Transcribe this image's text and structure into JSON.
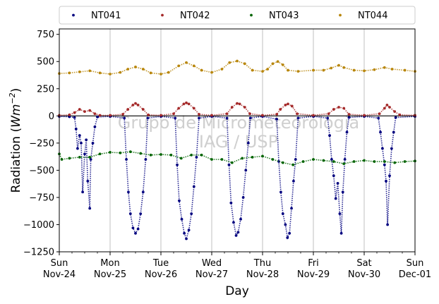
{
  "chart_data": {
    "type": "scatter",
    "title": "",
    "xlabel": "Day",
    "ylabel": "Radiation (Wm⁻²)",
    "ylabel_base": "Radiation (",
    "ylabel_unit": "Wm",
    "ylabel_exp": "−2",
    "ylabel_close": ")",
    "xlim": [
      0,
      7
    ],
    "ylim": [
      -1250,
      800
    ],
    "yticks": [
      -1250,
      -1000,
      -750,
      -500,
      -250,
      0,
      250,
      500,
      750
    ],
    "xticks": [
      {
        "x": 0,
        "day": "Sun",
        "date": "Nov-24"
      },
      {
        "x": 1,
        "day": "Mon",
        "date": "Nov-25"
      },
      {
        "x": 2,
        "day": "Tue",
        "date": "Nov-26"
      },
      {
        "x": 3,
        "day": "Wed",
        "date": "Nov-27"
      },
      {
        "x": 4,
        "day": "Thu",
        "date": "Nov-28"
      },
      {
        "x": 5,
        "day": "Fri",
        "date": "Nov-29"
      },
      {
        "x": 6,
        "day": "Sat",
        "date": "Nov-30"
      },
      {
        "x": 7,
        "day": "Sun",
        "date": "Dec-01"
      }
    ],
    "grid": "vertical",
    "zero_line": true,
    "legend_position": "top",
    "watermark": [
      "Grupo de Micrometeorologia",
      "IAG / USP"
    ],
    "series": [
      {
        "name": "NT041",
        "color": "#00007f",
        "points": [
          [
            0.0,
            -5
          ],
          [
            0.2,
            -8
          ],
          [
            0.3,
            -15
          ],
          [
            0.33,
            -120
          ],
          [
            0.36,
            -300
          ],
          [
            0.4,
            -180
          ],
          [
            0.43,
            -250
          ],
          [
            0.46,
            -700
          ],
          [
            0.5,
            -350
          ],
          [
            0.53,
            -220
          ],
          [
            0.56,
            -600
          ],
          [
            0.6,
            -850
          ],
          [
            0.62,
            -400
          ],
          [
            0.66,
            -250
          ],
          [
            0.7,
            -100
          ],
          [
            0.75,
            -10
          ],
          [
            1.0,
            -5
          ],
          [
            1.28,
            -20
          ],
          [
            1.32,
            -400
          ],
          [
            1.36,
            -700
          ],
          [
            1.4,
            -900
          ],
          [
            1.45,
            -1030
          ],
          [
            1.5,
            -1080
          ],
          [
            1.55,
            -1040
          ],
          [
            1.6,
            -900
          ],
          [
            1.65,
            -700
          ],
          [
            1.7,
            -400
          ],
          [
            1.74,
            -20
          ],
          [
            2.0,
            -5
          ],
          [
            2.28,
            -20
          ],
          [
            2.32,
            -450
          ],
          [
            2.36,
            -780
          ],
          [
            2.41,
            -950
          ],
          [
            2.46,
            -1080
          ],
          [
            2.5,
            -1130
          ],
          [
            2.55,
            -1050
          ],
          [
            2.6,
            -900
          ],
          [
            2.65,
            -650
          ],
          [
            2.7,
            -380
          ],
          [
            2.75,
            -20
          ],
          [
            3.0,
            -5
          ],
          [
            3.3,
            -20
          ],
          [
            3.34,
            -450
          ],
          [
            3.38,
            -800
          ],
          [
            3.43,
            -980
          ],
          [
            3.48,
            -1100
          ],
          [
            3.52,
            -1070
          ],
          [
            3.57,
            -950
          ],
          [
            3.62,
            -750
          ],
          [
            3.67,
            -500
          ],
          [
            3.72,
            -250
          ],
          [
            3.76,
            -20
          ],
          [
            4.0,
            -5
          ],
          [
            4.28,
            -30
          ],
          [
            4.32,
            -420
          ],
          [
            4.36,
            -700
          ],
          [
            4.4,
            -900
          ],
          [
            4.45,
            -1000
          ],
          [
            4.49,
            -1120
          ],
          [
            4.53,
            -1080
          ],
          [
            4.57,
            -850
          ],
          [
            4.61,
            -600
          ],
          [
            4.65,
            -400
          ],
          [
            4.7,
            -20
          ],
          [
            5.0,
            -5
          ],
          [
            5.28,
            -20
          ],
          [
            5.32,
            -180
          ],
          [
            5.36,
            -400
          ],
          [
            5.4,
            -550
          ],
          [
            5.44,
            -760
          ],
          [
            5.48,
            -620
          ],
          [
            5.52,
            -900
          ],
          [
            5.55,
            -1080
          ],
          [
            5.58,
            -700
          ],
          [
            5.62,
            -400
          ],
          [
            5.66,
            -150
          ],
          [
            5.7,
            -15
          ],
          [
            6.0,
            -5
          ],
          [
            6.28,
            -20
          ],
          [
            6.32,
            -150
          ],
          [
            6.36,
            -300
          ],
          [
            6.4,
            -450
          ],
          [
            6.43,
            -600
          ],
          [
            6.46,
            -1000
          ],
          [
            6.5,
            -550
          ],
          [
            6.54,
            -300
          ],
          [
            6.58,
            -150
          ],
          [
            6.62,
            -15
          ],
          [
            7.0,
            -5
          ]
        ]
      },
      {
        "name": "NT042",
        "color": "#a52a2a",
        "points": [
          [
            0.0,
            5
          ],
          [
            0.2,
            10
          ],
          [
            0.3,
            30
          ],
          [
            0.4,
            60
          ],
          [
            0.5,
            40
          ],
          [
            0.6,
            50
          ],
          [
            0.7,
            20
          ],
          [
            0.8,
            5
          ],
          [
            1.0,
            5
          ],
          [
            1.25,
            15
          ],
          [
            1.35,
            60
          ],
          [
            1.45,
            100
          ],
          [
            1.5,
            115
          ],
          [
            1.55,
            100
          ],
          [
            1.65,
            60
          ],
          [
            1.75,
            10
          ],
          [
            2.0,
            5
          ],
          [
            2.25,
            20
          ],
          [
            2.35,
            70
          ],
          [
            2.45,
            110
          ],
          [
            2.5,
            120
          ],
          [
            2.55,
            110
          ],
          [
            2.65,
            70
          ],
          [
            2.75,
            15
          ],
          [
            3.0,
            5
          ],
          [
            3.3,
            20
          ],
          [
            3.4,
            80
          ],
          [
            3.5,
            115
          ],
          [
            3.55,
            110
          ],
          [
            3.65,
            80
          ],
          [
            3.75,
            20
          ],
          [
            4.0,
            5
          ],
          [
            4.28,
            15
          ],
          [
            4.35,
            60
          ],
          [
            4.45,
            100
          ],
          [
            4.5,
            110
          ],
          [
            4.58,
            90
          ],
          [
            4.68,
            20
          ],
          [
            5.0,
            5
          ],
          [
            5.3,
            20
          ],
          [
            5.4,
            60
          ],
          [
            5.5,
            80
          ],
          [
            5.6,
            70
          ],
          [
            5.7,
            15
          ],
          [
            6.0,
            5
          ],
          [
            6.3,
            20
          ],
          [
            6.4,
            70
          ],
          [
            6.45,
            100
          ],
          [
            6.5,
            80
          ],
          [
            6.6,
            40
          ],
          [
            6.7,
            10
          ],
          [
            7.0,
            5
          ]
        ]
      },
      {
        "name": "NT043",
        "color": "#006400",
        "points": [
          [
            0.0,
            -350
          ],
          [
            0.05,
            -400
          ],
          [
            0.2,
            -390
          ],
          [
            0.4,
            -380
          ],
          [
            0.6,
            -380
          ],
          [
            0.8,
            -350
          ],
          [
            1.0,
            -335
          ],
          [
            1.2,
            -340
          ],
          [
            1.4,
            -330
          ],
          [
            1.6,
            -345
          ],
          [
            1.8,
            -360
          ],
          [
            2.0,
            -355
          ],
          [
            2.2,
            -360
          ],
          [
            2.4,
            -390
          ],
          [
            2.6,
            -360
          ],
          [
            2.8,
            -360
          ],
          [
            3.0,
            -400
          ],
          [
            3.2,
            -400
          ],
          [
            3.4,
            -430
          ],
          [
            3.6,
            -390
          ],
          [
            3.8,
            -380
          ],
          [
            4.0,
            -370
          ],
          [
            4.2,
            -400
          ],
          [
            4.4,
            -430
          ],
          [
            4.6,
            -450
          ],
          [
            4.8,
            -420
          ],
          [
            5.0,
            -400
          ],
          [
            5.2,
            -410
          ],
          [
            5.4,
            -420
          ],
          [
            5.6,
            -440
          ],
          [
            5.8,
            -420
          ],
          [
            6.0,
            -410
          ],
          [
            6.2,
            -420
          ],
          [
            6.4,
            -420
          ],
          [
            6.6,
            -430
          ],
          [
            6.8,
            -420
          ],
          [
            7.0,
            -415
          ]
        ]
      },
      {
        "name": "NT044",
        "color": "#b8860b",
        "points": [
          [
            0.0,
            390
          ],
          [
            0.2,
            395
          ],
          [
            0.4,
            405
          ],
          [
            0.6,
            415
          ],
          [
            0.8,
            395
          ],
          [
            1.0,
            385
          ],
          [
            1.2,
            400
          ],
          [
            1.35,
            430
          ],
          [
            1.5,
            450
          ],
          [
            1.65,
            430
          ],
          [
            1.8,
            395
          ],
          [
            2.0,
            385
          ],
          [
            2.15,
            400
          ],
          [
            2.35,
            460
          ],
          [
            2.5,
            490
          ],
          [
            2.65,
            460
          ],
          [
            2.8,
            420
          ],
          [
            3.0,
            400
          ],
          [
            3.2,
            430
          ],
          [
            3.35,
            490
          ],
          [
            3.5,
            505
          ],
          [
            3.65,
            480
          ],
          [
            3.8,
            420
          ],
          [
            4.0,
            410
          ],
          [
            4.1,
            430
          ],
          [
            4.2,
            480
          ],
          [
            4.3,
            500
          ],
          [
            4.4,
            470
          ],
          [
            4.5,
            420
          ],
          [
            4.7,
            410
          ],
          [
            5.0,
            420
          ],
          [
            5.2,
            420
          ],
          [
            5.35,
            440
          ],
          [
            5.5,
            465
          ],
          [
            5.6,
            445
          ],
          [
            5.8,
            420
          ],
          [
            6.0,
            415
          ],
          [
            6.2,
            425
          ],
          [
            6.4,
            445
          ],
          [
            6.55,
            430
          ],
          [
            6.8,
            420
          ],
          [
            7.0,
            410
          ]
        ]
      }
    ]
  }
}
